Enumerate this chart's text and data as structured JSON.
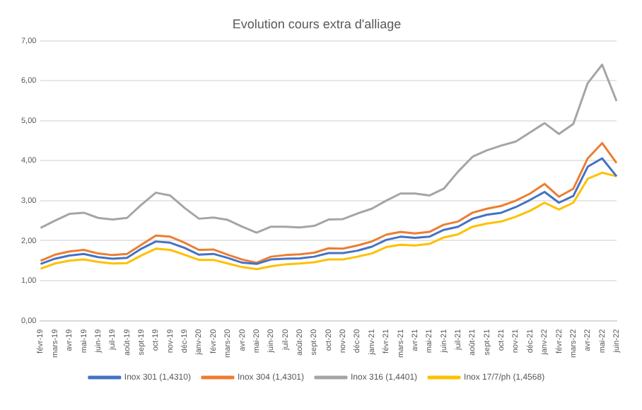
{
  "chart_data": {
    "type": "line",
    "title": "Evolution cours extra d'alliage",
    "categories": [
      "févr-19",
      "mars-19",
      "avr-19",
      "mai-19",
      "juin-19",
      "juil-19",
      "août-19",
      "sept-19",
      "oct-19",
      "nov-19",
      "déc-19",
      "janv-20",
      "févr-20",
      "mars-20",
      "avr-20",
      "mai-20",
      "juin-20",
      "juil-20",
      "août-20",
      "sept-20",
      "oct-20",
      "nov-20",
      "déc-20",
      "janv-21",
      "févr-21",
      "mars-21",
      "avr-21",
      "mai-21",
      "juin-21",
      "juil-21",
      "août-21",
      "sept-21",
      "oct-21",
      "nov-21",
      "déc-21",
      "janv-22",
      "févr-22",
      "mars-22",
      "avr-22",
      "mai-22",
      "juin-22"
    ],
    "series": [
      {
        "name": "Inox 301 (1,4310)",
        "color": "#4472c4",
        "values": [
          1.42,
          1.55,
          1.63,
          1.67,
          1.59,
          1.55,
          1.57,
          1.8,
          1.98,
          1.95,
          1.82,
          1.65,
          1.67,
          1.57,
          1.45,
          1.42,
          1.53,
          1.55,
          1.56,
          1.6,
          1.69,
          1.69,
          1.75,
          1.85,
          2.02,
          2.1,
          2.07,
          2.1,
          2.27,
          2.35,
          2.55,
          2.65,
          2.7,
          2.84,
          3.02,
          3.22,
          2.95,
          3.12,
          3.85,
          4.06,
          3.61
        ]
      },
      {
        "name": "Inox 304 (1,4301)",
        "color": "#ed7d31",
        "values": [
          1.5,
          1.65,
          1.73,
          1.77,
          1.68,
          1.64,
          1.67,
          1.9,
          2.13,
          2.1,
          1.95,
          1.77,
          1.78,
          1.65,
          1.53,
          1.45,
          1.6,
          1.64,
          1.66,
          1.7,
          1.81,
          1.8,
          1.88,
          1.98,
          2.15,
          2.22,
          2.18,
          2.22,
          2.4,
          2.48,
          2.7,
          2.8,
          2.87,
          3.0,
          3.18,
          3.42,
          3.1,
          3.3,
          4.06,
          4.44,
          3.94
        ]
      },
      {
        "name": "Inox 316 (1,4401)",
        "color": "#a5a5a5",
        "values": [
          2.32,
          2.5,
          2.67,
          2.7,
          2.57,
          2.53,
          2.57,
          2.9,
          3.2,
          3.13,
          2.82,
          2.55,
          2.58,
          2.52,
          2.35,
          2.2,
          2.35,
          2.35,
          2.33,
          2.37,
          2.53,
          2.54,
          2.68,
          2.8,
          3.0,
          3.18,
          3.18,
          3.13,
          3.3,
          3.73,
          4.1,
          4.26,
          4.38,
          4.48,
          4.71,
          4.94,
          4.67,
          4.92,
          5.94,
          6.4,
          5.49
        ]
      },
      {
        "name": "Inox 17/7/ph (1,4568)",
        "color": "#ffc000",
        "values": [
          1.3,
          1.43,
          1.5,
          1.53,
          1.47,
          1.43,
          1.44,
          1.63,
          1.8,
          1.77,
          1.65,
          1.52,
          1.52,
          1.43,
          1.34,
          1.29,
          1.36,
          1.41,
          1.43,
          1.46,
          1.53,
          1.53,
          1.6,
          1.68,
          1.84,
          1.9,
          1.88,
          1.92,
          2.08,
          2.16,
          2.35,
          2.43,
          2.48,
          2.6,
          2.75,
          2.95,
          2.78,
          2.95,
          3.55,
          3.7,
          3.61
        ]
      }
    ],
    "ylim": [
      0,
      7
    ],
    "yticks": [
      {
        "value": 0,
        "label": "0,00"
      },
      {
        "value": 1,
        "label": "1,00"
      },
      {
        "value": 2,
        "label": "2,00"
      },
      {
        "value": 3,
        "label": "3,00"
      },
      {
        "value": 4,
        "label": "4,00"
      },
      {
        "value": 5,
        "label": "5,00"
      },
      {
        "value": 6,
        "label": "6,00"
      },
      {
        "value": 7,
        "label": "7,00"
      }
    ],
    "grid": "y",
    "legend": "bottom",
    "marker": "none",
    "line_style": "solid"
  }
}
